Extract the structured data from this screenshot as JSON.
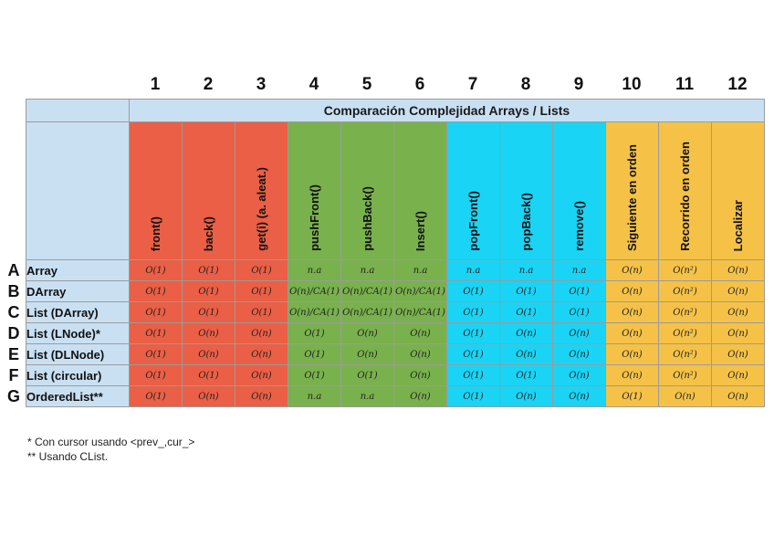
{
  "column_numbers": [
    "1",
    "2",
    "3",
    "4",
    "5",
    "6",
    "7",
    "8",
    "9",
    "10",
    "11",
    "12"
  ],
  "table_title": "Comparación Complejidad Arrays / Lists",
  "headers": [
    "front()",
    "back()",
    "get(i) (a. aleat.)",
    "pushFront()",
    "pushBack()",
    "Insert()",
    "popFront()",
    "popBack()",
    "remove()",
    "Siguiente en orden",
    "Recorrido en orden",
    "Localizar"
  ],
  "column_colors": [
    "#ea5f45",
    "#ea5f45",
    "#ea5f45",
    "#79b14d",
    "#79b14d",
    "#79b14d",
    "#19d4f5",
    "#19d4f5",
    "#19d4f5",
    "#f5c247",
    "#f5c247",
    "#f5c247"
  ],
  "rows": [
    {
      "letter": "A",
      "name": "Array",
      "cells": [
        "O(1)",
        "O(1)",
        "O(1)",
        "n.a",
        "n.a",
        "n.a",
        "n.a",
        "n.a",
        "n.a",
        "O(n)",
        "O(n²)",
        "O(n)"
      ]
    },
    {
      "letter": "B",
      "name": "DArray",
      "cells": [
        "O(1)",
        "O(1)",
        "O(1)",
        "O(n)/CA(1)",
        "O(n)/CA(1)",
        "O(n)/CA(1)",
        "O(1)",
        "O(1)",
        "O(1)",
        "O(n)",
        "O(n²)",
        "O(n)"
      ]
    },
    {
      "letter": "C",
      "name": "List (DArray)",
      "cells": [
        "O(1)",
        "O(1)",
        "O(1)",
        "O(n)/CA(1)",
        "O(n)/CA(1)",
        "O(n)/CA(1)",
        "O(1)",
        "O(1)",
        "O(1)",
        "O(n)",
        "O(n²)",
        "O(n)"
      ]
    },
    {
      "letter": "D",
      "name": "List (LNode)*",
      "cells": [
        "O(1)",
        "O(n)",
        "O(n)",
        "O(1)",
        "O(n)",
        "O(n)",
        "O(1)",
        "O(n)",
        "O(n)",
        "O(n)",
        "O(n²)",
        "O(n)"
      ]
    },
    {
      "letter": "E",
      "name": "List (DLNode)",
      "cells": [
        "O(1)",
        "O(n)",
        "O(n)",
        "O(1)",
        "O(n)",
        "O(n)",
        "O(1)",
        "O(n)",
        "O(n)",
        "O(n)",
        "O(n²)",
        "O(n)"
      ]
    },
    {
      "letter": "F",
      "name": "List (circular)",
      "cells": [
        "O(1)",
        "O(1)",
        "O(n)",
        "O(1)",
        "O(1)",
        "O(n)",
        "O(1)",
        "O(1)",
        "O(n)",
        "O(n)",
        "O(n²)",
        "O(n)"
      ]
    },
    {
      "letter": "G",
      "name": "OrderedList**",
      "cells": [
        "O(1)",
        "O(n)",
        "O(n)",
        "n.a",
        "n.a",
        "O(n)",
        "O(1)",
        "O(n)",
        "O(n)",
        "O(1)",
        "O(n)",
        "O(n)"
      ]
    }
  ],
  "notes": {
    "note1": "* Con cursor usando <prev_,cur_>",
    "note2": "** Usando CList."
  }
}
